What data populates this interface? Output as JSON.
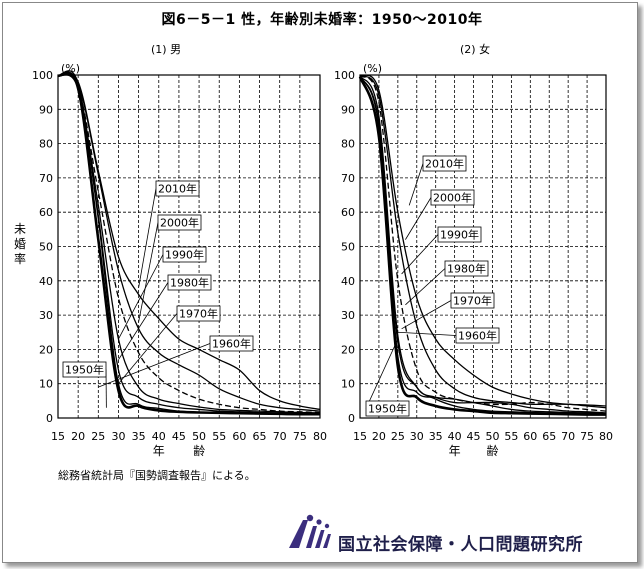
{
  "title": "図6－5－1 性，年齢別未婚率：1950～2010年",
  "y_axis_label": "未婚率",
  "y_unit": "(%)",
  "source": "総務省統計局『国勢調査報告』による。",
  "organization": "国立社会保障・人口問題研究所",
  "x_axis_label": [
    "年",
    "齢"
  ],
  "chart_data": [
    {
      "type": "line",
      "panel": "(1) 男",
      "x": [
        15,
        20,
        25,
        30,
        35,
        40,
        45,
        50,
        55,
        60,
        65,
        70,
        75,
        80
      ],
      "ylim": [
        0,
        100
      ],
      "xlim": [
        15,
        80
      ],
      "yticks": [
        0,
        10,
        20,
        30,
        40,
        50,
        60,
        70,
        80,
        90,
        100
      ],
      "xticks": [
        15,
        20,
        25,
        30,
        35,
        40,
        45,
        50,
        55,
        60,
        65,
        70,
        75,
        80
      ],
      "grid": true,
      "series": [
        {
          "name": "1950年",
          "values": [
            99.8,
            96.0,
            52.0,
            8.0,
            3.5,
            2.2,
            1.8,
            1.6,
            1.5,
            1.4,
            1.3,
            1.2,
            1.1,
            1.1
          ]
        },
        {
          "name": "1960年",
          "values": [
            99.9,
            97.5,
            58.0,
            10.0,
            4.0,
            2.8,
            2.0,
            1.7,
            1.6,
            1.5,
            1.4,
            1.3,
            1.3,
            1.2
          ]
        },
        {
          "name": "1970年",
          "values": [
            99.8,
            96.0,
            59.0,
            14.0,
            6.0,
            4.0,
            3.0,
            2.5,
            2.0,
            1.8,
            1.6,
            1.5,
            1.4,
            1.3
          ]
        },
        {
          "name": "1980年",
          "values": [
            99.8,
            96.0,
            62.0,
            23.0,
            9.0,
            5.5,
            4.2,
            3.2,
            2.5,
            2.2,
            2.0,
            1.8,
            1.6,
            1.5
          ]
        },
        {
          "name": "1990年",
          "values": [
            99.8,
            96.5,
            66.0,
            35.0,
            19.0,
            11.7,
            8.0,
            5.5,
            4.0,
            3.0,
            2.5,
            2.0,
            1.8,
            1.6
          ]
        },
        {
          "name": "2000年",
          "values": [
            99.9,
            97.5,
            71.0,
            43.0,
            26.0,
            19.0,
            15.5,
            12.5,
            8.5,
            6.0,
            4.0,
            3.0,
            2.5,
            2.0
          ]
        },
        {
          "name": "2010年",
          "values": [
            99.9,
            98.0,
            72.0,
            47.0,
            36.0,
            29.0,
            23.0,
            20.0,
            17.0,
            14.0,
            8.0,
            5.0,
            3.5,
            2.5
          ]
        }
      ],
      "annotations": [
        "2010年",
        "2000年",
        "1990年",
        "1980年",
        "1970年",
        "1960年",
        "1950年"
      ]
    },
    {
      "type": "line",
      "panel": "(2) 女",
      "x": [
        15,
        20,
        25,
        30,
        35,
        40,
        45,
        50,
        55,
        60,
        65,
        70,
        75,
        80
      ],
      "ylim": [
        0,
        100
      ],
      "xlim": [
        15,
        80
      ],
      "yticks": [
        0,
        10,
        20,
        30,
        40,
        50,
        60,
        70,
        80,
        90,
        100
      ],
      "xticks": [
        15,
        20,
        25,
        30,
        35,
        40,
        45,
        50,
        55,
        60,
        65,
        70,
        75,
        80
      ],
      "grid": true,
      "series": [
        {
          "name": "1950年",
          "values": [
            99.5,
            82.0,
            15.0,
            6.0,
            3.5,
            2.5,
            2.0,
            1.5,
            1.4,
            1.3,
            1.2,
            1.1,
            1.0,
            1.0
          ]
        },
        {
          "name": "1960年",
          "values": [
            99.6,
            86.0,
            22.0,
            9.0,
            5.5,
            3.5,
            2.5,
            2.0,
            1.8,
            1.6,
            1.5,
            1.4,
            1.3,
            1.2
          ]
        },
        {
          "name": "1970年",
          "values": [
            99.7,
            85.0,
            18.0,
            7.5,
            6.0,
            5.5,
            4.5,
            3.5,
            2.5,
            2.0,
            1.8,
            1.6,
            1.5,
            1.4
          ]
        },
        {
          "name": "1980年",
          "values": [
            99.7,
            88.0,
            24.0,
            9.0,
            6.0,
            4.5,
            4.5,
            4.5,
            4.0,
            3.0,
            2.5,
            2.0,
            1.8,
            1.5
          ]
        },
        {
          "name": "1990年",
          "values": [
            99.8,
            92.0,
            40.0,
            14.0,
            7.5,
            5.5,
            4.5,
            4.0,
            4.0,
            4.5,
            4.0,
            3.0,
            2.5,
            2.0
          ]
        },
        {
          "name": "2000年",
          "values": [
            99.8,
            94.0,
            54.0,
            27.0,
            14.0,
            8.5,
            6.0,
            5.0,
            4.5,
            4.0,
            4.0,
            4.0,
            3.5,
            3.0
          ]
        },
        {
          "name": "2010年",
          "values": [
            99.9,
            95.5,
            60.0,
            35.0,
            23.0,
            17.0,
            12.5,
            9.0,
            7.0,
            5.5,
            4.5,
            4.0,
            3.8,
            3.5
          ]
        }
      ],
      "annotations": [
        "2010年",
        "2000年",
        "1990年",
        "1980年",
        "1970年",
        "1960年",
        "1950年"
      ]
    }
  ]
}
